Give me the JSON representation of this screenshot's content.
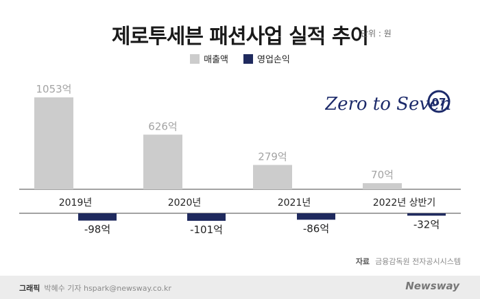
{
  "header": {
    "title": "제로투세븐 패션사업 실적 추이",
    "unit": "단위 : 원"
  },
  "legend": [
    {
      "label": "매출액",
      "color": "#cccccc"
    },
    {
      "label": "영업손익",
      "color": "#1f2a5e"
    }
  ],
  "logo": {
    "text": "Zero to Seven",
    "badge": "07"
  },
  "source": {
    "label": "자료",
    "text": "금융감독원 전자공시시스템"
  },
  "footer": {
    "credit_label": "그래픽",
    "credit_text": "박혜수 기자 hspark@newsway.co.kr",
    "brand": "Newsway"
  },
  "chart_data": {
    "type": "bar",
    "title": "제로투세븐 패션사업 실적 추이",
    "unit": "단위 : 원",
    "categories": [
      "2019년",
      "2020년",
      "2021년",
      "2022년 상반기"
    ],
    "series": [
      {
        "name": "매출액",
        "color": "#cccccc",
        "values": [
          1053,
          626,
          279,
          70
        ],
        "labels": [
          "1053억",
          "626억",
          "279억",
          "70억"
        ]
      },
      {
        "name": "영업손익",
        "color": "#1f2a5e",
        "values": [
          -98,
          -101,
          -86,
          -32
        ],
        "labels": [
          "-98억",
          "-101억",
          "-86억",
          "-32억"
        ]
      }
    ]
  }
}
